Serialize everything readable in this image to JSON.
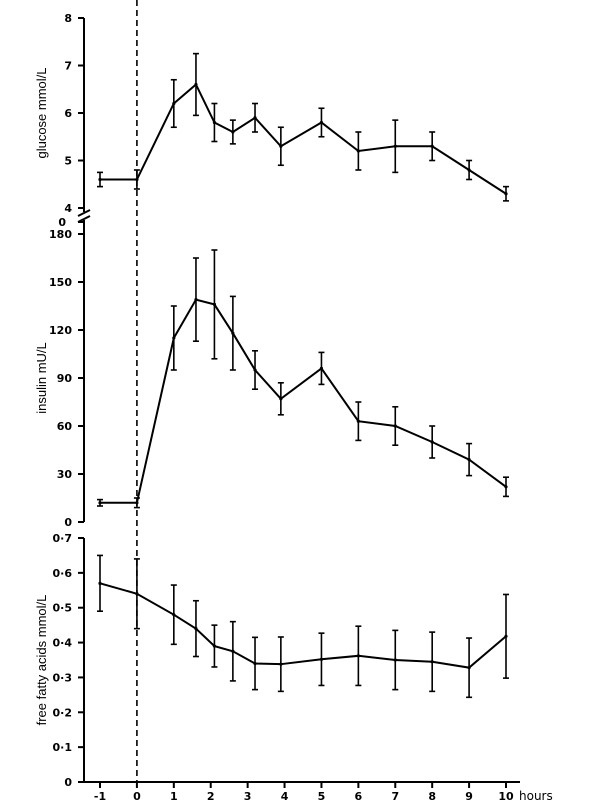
{
  "chart_data": [
    {
      "type": "line",
      "ylabel": "glucose mmol/L",
      "ylim": [
        4,
        8
      ],
      "yticks": [
        "4",
        "5",
        "6",
        "7",
        "8"
      ],
      "axis_break": true,
      "break_label": "0",
      "x": [
        -1,
        0,
        1,
        1.6,
        2.1,
        2.6,
        3.2,
        3.9,
        5,
        6,
        7,
        8,
        9,
        10
      ],
      "series": [
        {
          "values": [
            4.6,
            4.6,
            6.2,
            6.6,
            5.8,
            5.6,
            5.9,
            5.3,
            5.8,
            5.2,
            5.3,
            5.3,
            4.8,
            4.3
          ],
          "errors": [
            0.15,
            0.2,
            0.5,
            0.65,
            0.4,
            0.25,
            0.3,
            0.4,
            0.3,
            0.4,
            0.55,
            0.3,
            0.2,
            0.15
          ]
        }
      ]
    },
    {
      "type": "line",
      "ylabel": "insulin mU/L",
      "ylim": [
        0,
        180
      ],
      "yticks": [
        "0",
        "30",
        "60",
        "90",
        "120",
        "150",
        "180"
      ],
      "x": [
        -1,
        0,
        1,
        1.6,
        2.1,
        2.6,
        3.2,
        3.9,
        5,
        6,
        7,
        8,
        9,
        10
      ],
      "series": [
        {
          "values": [
            12,
            12,
            115,
            139,
            136,
            118,
            95,
            77,
            96,
            63,
            60,
            50,
            39,
            22
          ],
          "errors": [
            2,
            3,
            20,
            26,
            34,
            23,
            12,
            10,
            10,
            12,
            12,
            10,
            10,
            6
          ]
        }
      ]
    },
    {
      "type": "line",
      "ylabel": "free fatty acids mmol/L",
      "ylim": [
        0,
        0.7
      ],
      "yticks": [
        "0",
        "0·1",
        "0·2",
        "0·3",
        "0·4",
        "0·5",
        "0·6",
        "0·7"
      ],
      "xlabel": "hours",
      "xticks": [
        "-1",
        "0",
        "1",
        "2",
        "3",
        "4",
        "5",
        "6",
        "7",
        "8",
        "9",
        "10"
      ],
      "x": [
        -1,
        0,
        1,
        1.6,
        2.1,
        2.6,
        3.2,
        3.9,
        5,
        6,
        7,
        8,
        9,
        10
      ],
      "series": [
        {
          "values": [
            0.57,
            0.54,
            0.48,
            0.44,
            0.39,
            0.375,
            0.34,
            0.338,
            0.352,
            0.362,
            0.35,
            0.345,
            0.328,
            0.418
          ],
          "errors": [
            0.08,
            0.1,
            0.085,
            0.08,
            0.06,
            0.085,
            0.075,
            0.078,
            0.075,
            0.085,
            0.085,
            0.085,
            0.085,
            0.12
          ]
        }
      ]
    }
  ]
}
